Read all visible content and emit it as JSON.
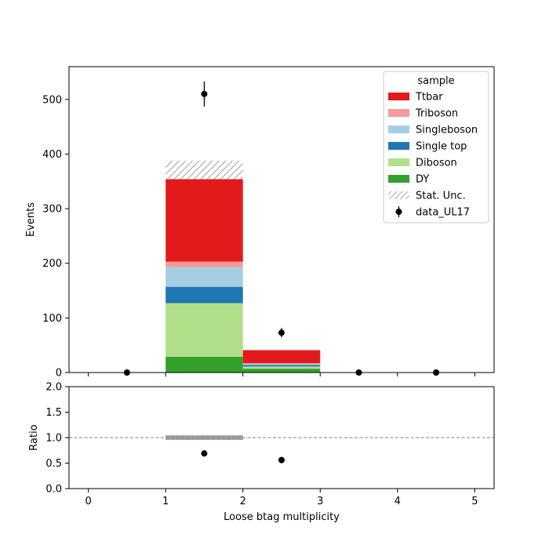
{
  "chart_data": [
    {
      "type": "bar",
      "stacked": true,
      "xlabel": "",
      "ylabel": "Events",
      "xlim": [
        -0.25,
        5.25
      ],
      "ylim": [
        0,
        560
      ],
      "yticks": [
        0,
        100,
        200,
        300,
        400,
        500
      ],
      "bins": [
        [
          1,
          2
        ],
        [
          2,
          3
        ]
      ],
      "legend": {
        "title": "sample",
        "placement": "top-right"
      },
      "series": [
        {
          "name": "DY",
          "color": "#33a02c",
          "values": [
            29,
            7
          ]
        },
        {
          "name": "Diboson",
          "color": "#b2df8a",
          "values": [
            98,
            4
          ]
        },
        {
          "name": "Single top",
          "color": "#1f78b4",
          "values": [
            30,
            3
          ]
        },
        {
          "name": "Singleboson",
          "color": "#a6cee3",
          "values": [
            36,
            2
          ]
        },
        {
          "name": "Triboson",
          "color": "#fb9a99",
          "values": [
            10,
            1
          ]
        },
        {
          "name": "Ttbar",
          "color": "#e31a1c",
          "values": [
            151,
            24
          ]
        }
      ],
      "stat_unc": {
        "name": "Stat. Unc.",
        "bins": [
          [
            1,
            2
          ]
        ],
        "low": [
          354
        ],
        "high": [
          388
        ]
      },
      "data_points": {
        "name": "data_UL17",
        "x": [
          0.5,
          1.5,
          2.5,
          3.5,
          4.5
        ],
        "y": [
          0,
          510,
          73,
          0,
          0
        ],
        "yerr": [
          0,
          23,
          8.5,
          0,
          0
        ]
      }
    },
    {
      "type": "scatter",
      "xlabel": "Loose btag multiplicity",
      "ylabel": "Ratio",
      "xlim": [
        -0.25,
        5.25
      ],
      "ylim": [
        0,
        2
      ],
      "xticks": [
        0,
        1,
        2,
        3,
        4,
        5
      ],
      "yticks": [
        "0.0",
        "0.5",
        "1.0",
        "1.5",
        "2.0"
      ],
      "reference_line": 1.0,
      "unc_band": {
        "bins": [
          [
            1,
            2
          ]
        ],
        "low": [
          0.955
        ],
        "high": [
          1.045
        ]
      },
      "x": [
        1.5,
        2.5
      ],
      "y": [
        0.69,
        0.56
      ],
      "yerr": [
        0.04,
        0.065
      ]
    }
  ]
}
